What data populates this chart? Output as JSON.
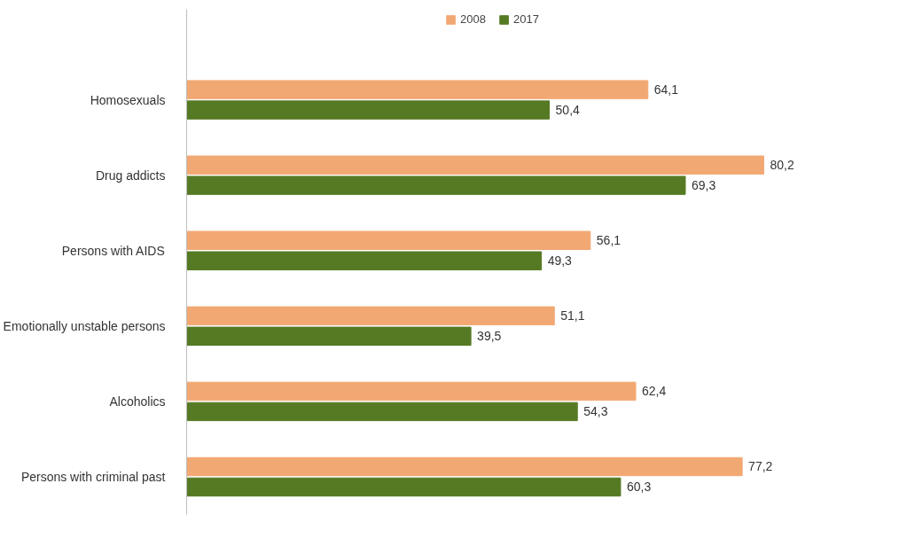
{
  "chart_data": {
    "type": "bar",
    "orientation": "horizontal",
    "categories": [
      "Homosexuals",
      "Drug addicts",
      "Persons with AIDS",
      "Emotionally unstable persons",
      "Alcoholics",
      "Persons with criminal past"
    ],
    "series": [
      {
        "name": "2008",
        "color": "#f2a873",
        "values": [
          64.1,
          80.2,
          56.1,
          51.1,
          62.4,
          77.2
        ],
        "value_labels": [
          "64,1",
          "80,2",
          "56,1",
          "51,1",
          "62,4",
          "77,2"
        ]
      },
      {
        "name": "2017",
        "color": "#567a24",
        "values": [
          50.4,
          69.3,
          49.3,
          39.5,
          54.3,
          60.3
        ],
        "value_labels": [
          "50,4",
          "69,3",
          "49,3",
          "39,5",
          "54,3",
          "60,3"
        ]
      }
    ],
    "tick_labels": "y",
    "grid": false,
    "legend": "top"
  }
}
